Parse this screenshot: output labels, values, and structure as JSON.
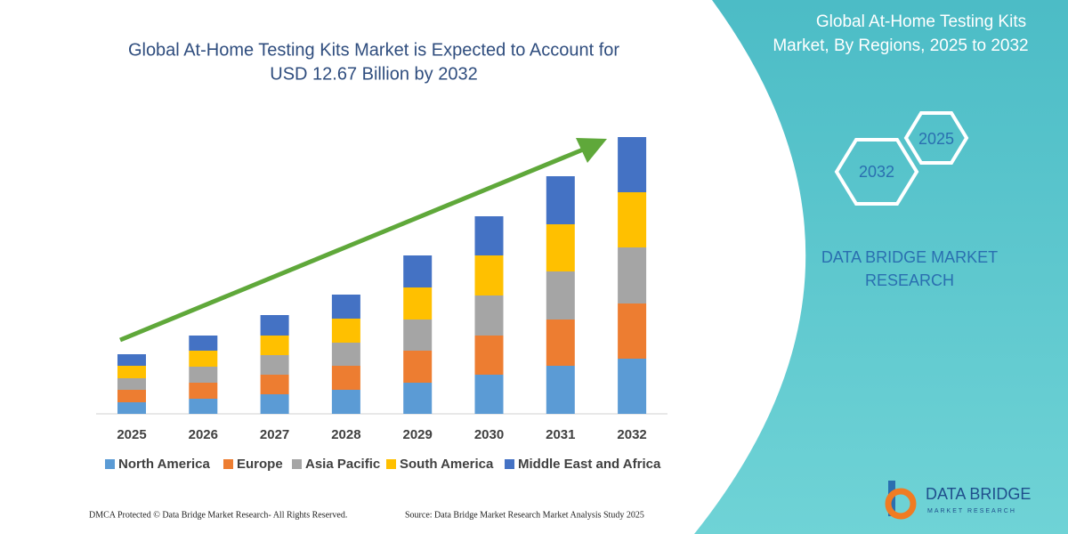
{
  "chart_data": {
    "type": "bar",
    "stacked": true,
    "title": "Global At-Home Testing Kits Market is Expected to Account for",
    "subtitle": "USD 12.67 Billion by 2032",
    "categories": [
      "2025",
      "2026",
      "2027",
      "2028",
      "2029",
      "2030",
      "2031",
      "2032"
    ],
    "series": [
      {
        "name": "North America",
        "color": "#5b9bd5",
        "values": [
          13,
          17,
          22,
          27,
          35,
          44,
          54,
          62
        ]
      },
      {
        "name": "Europe",
        "color": "#ed7d31",
        "values": [
          14,
          18,
          22,
          27,
          36,
          44,
          52,
          62
        ]
      },
      {
        "name": "Asia Pacific",
        "color": "#a5a5a5",
        "values": [
          13,
          18,
          22,
          26,
          35,
          45,
          54,
          63
        ]
      },
      {
        "name": "South America",
        "color": "#ffc000",
        "values": [
          14,
          18,
          22,
          27,
          36,
          45,
          53,
          62
        ]
      },
      {
        "name": "Middle East and Africa",
        "color": "#4472c4",
        "values": [
          13,
          17,
          23,
          27,
          36,
          44,
          54,
          62
        ]
      }
    ],
    "legend": "bottom"
  },
  "panel": {
    "title_line1": "Global At-Home Testing Kits",
    "title_line2": "Market, By Regions, 2025 to 2032",
    "hex_right": "2025",
    "hex_left": "2032",
    "brand_line1": "DATA BRIDGE MARKET",
    "brand_line2": "RESEARCH"
  },
  "logo": {
    "name": "DATA BRIDGE",
    "tagline": "MARKET RESEARCH"
  },
  "footer": {
    "left": "DMCA Protected © Data Bridge Market Research-  All Rights Reserved.",
    "right": "Source: Data Bridge Market Research  Market Analysis Study 2025"
  }
}
